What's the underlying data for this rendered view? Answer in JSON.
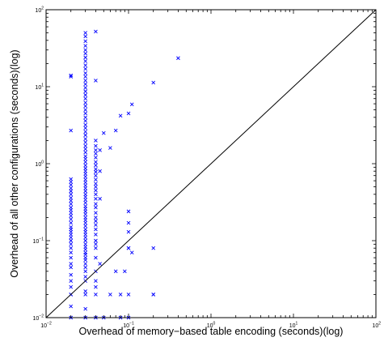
{
  "chart_data": {
    "type": "scatter",
    "title": "",
    "xlabel": "Overhead of memory−based table encoding (seconds)(log)",
    "ylabel": "Overhead of all other configurations (seconds)(log)",
    "x_scale": "log",
    "y_scale": "log",
    "xlim": [
      0.01,
      100
    ],
    "ylim": [
      0.01,
      100
    ],
    "grid": false,
    "legend": "none",
    "marker": "x",
    "marker_color": "#0000ff",
    "reference_line": {
      "description": "y = x",
      "from": [
        0.01,
        0.01
      ],
      "to": [
        100,
        100
      ],
      "color": "#000000"
    },
    "x_tick_labels": [
      {
        "base": "10",
        "exp": "−2",
        "value": 0.01
      },
      {
        "base": "10",
        "exp": "−1",
        "value": 0.1
      },
      {
        "base": "10",
        "exp": "0",
        "value": 1
      },
      {
        "base": "10",
        "exp": "1",
        "value": 10
      },
      {
        "base": "10",
        "exp": "2",
        "value": 100
      }
    ],
    "y_tick_labels": [
      {
        "base": "10",
        "exp": "−2",
        "value": 0.01
      },
      {
        "base": "10",
        "exp": "−1",
        "value": 0.1
      },
      {
        "base": "10",
        "exp": "0",
        "value": 1
      },
      {
        "base": "10",
        "exp": "1",
        "value": 10
      },
      {
        "base": "10",
        "exp": "2",
        "value": 100
      }
    ],
    "points": [
      [
        0.02,
        0.01
      ],
      [
        0.02,
        0.014
      ],
      [
        0.02,
        0.02
      ],
      [
        0.02,
        0.02
      ],
      [
        0.02,
        0.025
      ],
      [
        0.02,
        0.03
      ],
      [
        0.02,
        0.036
      ],
      [
        0.02,
        0.045
      ],
      [
        0.02,
        0.05
      ],
      [
        0.02,
        0.06
      ],
      [
        0.02,
        0.07
      ],
      [
        0.02,
        0.08
      ],
      [
        0.02,
        0.09
      ],
      [
        0.02,
        0.1
      ],
      [
        0.02,
        0.11
      ],
      [
        0.02,
        0.12
      ],
      [
        0.02,
        0.13
      ],
      [
        0.02,
        0.14
      ],
      [
        0.02,
        0.15
      ],
      [
        0.02,
        0.17
      ],
      [
        0.02,
        0.19
      ],
      [
        0.02,
        0.21
      ],
      [
        0.02,
        0.23
      ],
      [
        0.02,
        0.25
      ],
      [
        0.02,
        0.27
      ],
      [
        0.02,
        0.3
      ],
      [
        0.02,
        0.33
      ],
      [
        0.02,
        0.36
      ],
      [
        0.02,
        0.4
      ],
      [
        0.02,
        0.44
      ],
      [
        0.02,
        0.48
      ],
      [
        0.02,
        0.53
      ],
      [
        0.02,
        0.58
      ],
      [
        0.02,
        0.63
      ],
      [
        0.02,
        2.7
      ],
      [
        0.02,
        13.5
      ],
      [
        0.02,
        14
      ],
      [
        0.03,
        0.01
      ],
      [
        0.03,
        0.013
      ],
      [
        0.03,
        0.02
      ],
      [
        0.03,
        0.022
      ],
      [
        0.03,
        0.03
      ],
      [
        0.03,
        0.034
      ],
      [
        0.03,
        0.04
      ],
      [
        0.03,
        0.045
      ],
      [
        0.03,
        0.05
      ],
      [
        0.03,
        0.056
      ],
      [
        0.03,
        0.06
      ],
      [
        0.03,
        0.066
      ],
      [
        0.03,
        0.07
      ],
      [
        0.03,
        0.077
      ],
      [
        0.03,
        0.083
      ],
      [
        0.03,
        0.09
      ],
      [
        0.03,
        0.1
      ],
      [
        0.03,
        0.11
      ],
      [
        0.03,
        0.12
      ],
      [
        0.03,
        0.13
      ],
      [
        0.03,
        0.14
      ],
      [
        0.03,
        0.155
      ],
      [
        0.03,
        0.17
      ],
      [
        0.03,
        0.185
      ],
      [
        0.03,
        0.2
      ],
      [
        0.03,
        0.22
      ],
      [
        0.03,
        0.24
      ],
      [
        0.03,
        0.26
      ],
      [
        0.03,
        0.28
      ],
      [
        0.03,
        0.31
      ],
      [
        0.03,
        0.34
      ],
      [
        0.03,
        0.37
      ],
      [
        0.03,
        0.4
      ],
      [
        0.03,
        0.44
      ],
      [
        0.03,
        0.48
      ],
      [
        0.03,
        0.52
      ],
      [
        0.03,
        0.57
      ],
      [
        0.03,
        0.62
      ],
      [
        0.03,
        0.68
      ],
      [
        0.03,
        0.74
      ],
      [
        0.03,
        0.8
      ],
      [
        0.03,
        0.87
      ],
      [
        0.03,
        0.95
      ],
      [
        0.03,
        1.05
      ],
      [
        0.03,
        1.15
      ],
      [
        0.03,
        1.25
      ],
      [
        0.03,
        1.4
      ],
      [
        0.03,
        1.55
      ],
      [
        0.03,
        1.7
      ],
      [
        0.03,
        1.9
      ],
      [
        0.03,
        2.1
      ],
      [
        0.03,
        2.35
      ],
      [
        0.03,
        2.6
      ],
      [
        0.03,
        2.9
      ],
      [
        0.03,
        3.2
      ],
      [
        0.03,
        3.6
      ],
      [
        0.03,
        4
      ],
      [
        0.03,
        4.5
      ],
      [
        0.03,
        5
      ],
      [
        0.03,
        5.6
      ],
      [
        0.03,
        6.2
      ],
      [
        0.03,
        7
      ],
      [
        0.03,
        7.8
      ],
      [
        0.03,
        8.7
      ],
      [
        0.03,
        9.7
      ],
      [
        0.03,
        10.8
      ],
      [
        0.03,
        12
      ],
      [
        0.03,
        13.5
      ],
      [
        0.03,
        15
      ],
      [
        0.03,
        17
      ],
      [
        0.03,
        19
      ],
      [
        0.03,
        21.5
      ],
      [
        0.03,
        24
      ],
      [
        0.03,
        27
      ],
      [
        0.03,
        30
      ],
      [
        0.03,
        34
      ],
      [
        0.03,
        39
      ],
      [
        0.03,
        45
      ],
      [
        0.03,
        50
      ],
      [
        0.04,
        0.01
      ],
      [
        0.04,
        0.02
      ],
      [
        0.04,
        0.025
      ],
      [
        0.04,
        0.03
      ],
      [
        0.04,
        0.04
      ],
      [
        0.04,
        0.06
      ],
      [
        0.04,
        0.08
      ],
      [
        0.04,
        0.09
      ],
      [
        0.04,
        0.1
      ],
      [
        0.04,
        0.12
      ],
      [
        0.04,
        0.14
      ],
      [
        0.04,
        0.16
      ],
      [
        0.04,
        0.18
      ],
      [
        0.04,
        0.2
      ],
      [
        0.04,
        0.23
      ],
      [
        0.04,
        0.27
      ],
      [
        0.04,
        0.3
      ],
      [
        0.04,
        0.35
      ],
      [
        0.04,
        0.4
      ],
      [
        0.04,
        0.45
      ],
      [
        0.04,
        0.5
      ],
      [
        0.04,
        0.55
      ],
      [
        0.04,
        0.62
      ],
      [
        0.04,
        0.7
      ],
      [
        0.04,
        0.78
      ],
      [
        0.04,
        0.85
      ],
      [
        0.04,
        0.95
      ],
      [
        0.04,
        1.05
      ],
      [
        0.04,
        1.2
      ],
      [
        0.04,
        1.35
      ],
      [
        0.04,
        1.5
      ],
      [
        0.04,
        1.7
      ],
      [
        0.04,
        2.0
      ],
      [
        0.04,
        12
      ],
      [
        0.04,
        52
      ],
      [
        0.045,
        0.05
      ],
      [
        0.045,
        0.35
      ],
      [
        0.045,
        0.8
      ],
      [
        0.045,
        1.5
      ],
      [
        0.05,
        0.01
      ],
      [
        0.05,
        2.5
      ],
      [
        0.06,
        1.6
      ],
      [
        0.06,
        0.02
      ],
      [
        0.07,
        0.04
      ],
      [
        0.07,
        2.7
      ],
      [
        0.08,
        0.01
      ],
      [
        0.08,
        0.02
      ],
      [
        0.08,
        4.2
      ],
      [
        0.09,
        0.04
      ],
      [
        0.1,
        0.01
      ],
      [
        0.1,
        0.02
      ],
      [
        0.1,
        0.08
      ],
      [
        0.1,
        0.08
      ],
      [
        0.1,
        0.13
      ],
      [
        0.1,
        0.17
      ],
      [
        0.1,
        0.24
      ],
      [
        0.1,
        4.5
      ],
      [
        0.11,
        0.07
      ],
      [
        0.11,
        5.9
      ],
      [
        0.2,
        0.02
      ],
      [
        0.2,
        0.02
      ],
      [
        0.2,
        0.08
      ],
      [
        0.2,
        11.3
      ],
      [
        0.4,
        23.5
      ]
    ]
  }
}
